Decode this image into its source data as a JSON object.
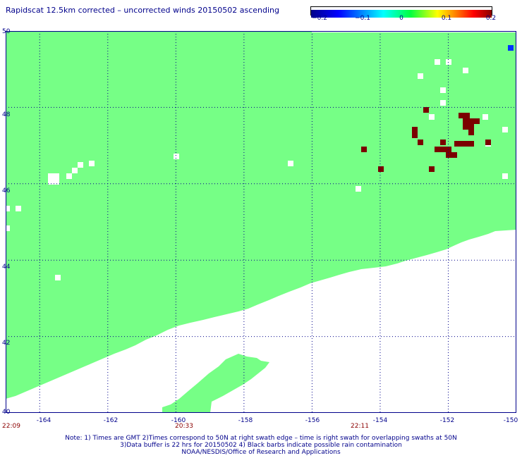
{
  "title": "Rapidscat 12.5km corrected – uncorrected winds 20150502 ascending",
  "colorbar": {
    "ticks": [
      "−0.2",
      "−0.1",
      "0",
      "0.1",
      "0.2"
    ],
    "range": [
      -0.2,
      0.2
    ],
    "colors": [
      "#00008b",
      "#0000ff",
      "#00ffff",
      "#00ff00",
      "#ffff00",
      "#ff8000",
      "#ff0000",
      "#8b0000"
    ]
  },
  "map": {
    "lat_range": [
      40,
      50
    ],
    "lon_range": [
      -165,
      -150
    ],
    "lat_ticks": [
      "40",
      "42",
      "44",
      "46",
      "48",
      "50"
    ],
    "lon_ticks": [
      "-164",
      "-162",
      "-160",
      "-158",
      "-156",
      "-154",
      "-152",
      "-150"
    ],
    "land_color": "#76ff86",
    "strong_color": "#7b0000",
    "neg_color": "#0033ff",
    "grid": "dotted"
  },
  "times": {
    "left": "22:09",
    "middle": "20:33",
    "right": "22:11"
  },
  "notes": {
    "line1": "Note: 1) Times are GMT 2)Times correspond to 50N at right swath edge – time is right swath for overlapping swaths at 50N",
    "line2": "3)Data buffer is 22 hrs for 20150502 4) Black barbs indicate possible rain contamination",
    "line3": "NOAA/NESDIS/Office of Research and Applications"
  }
}
